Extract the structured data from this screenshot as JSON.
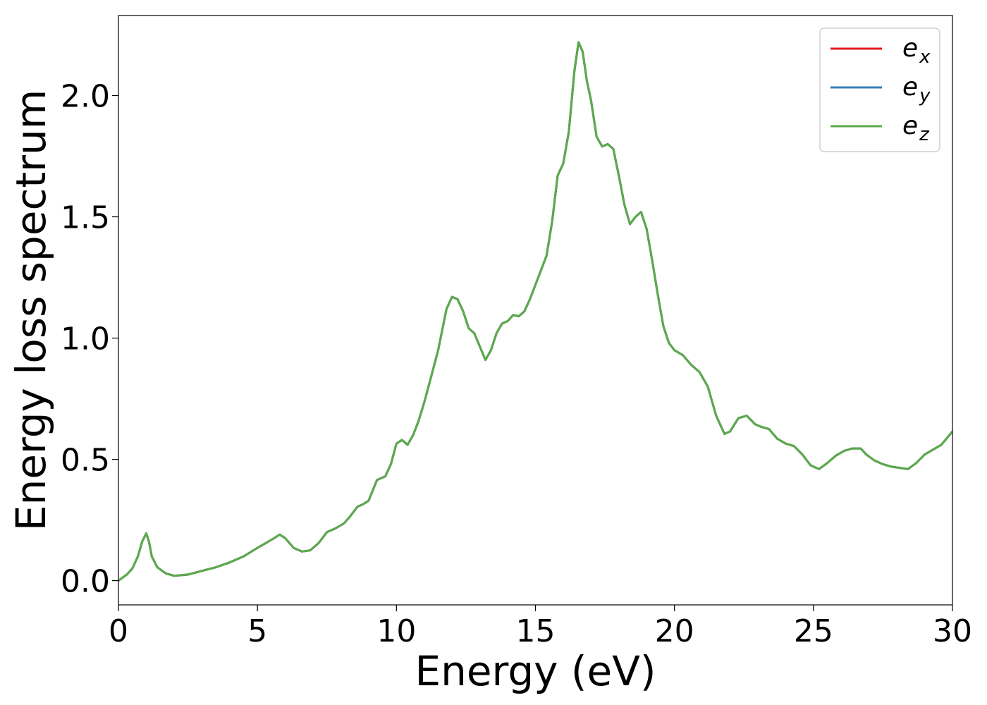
{
  "chart_data": {
    "type": "line",
    "title": "",
    "xlabel": "Energy (eV)",
    "ylabel": "Energy loss spectrum",
    "xlim": [
      0,
      30
    ],
    "ylim": [
      -0.1,
      2.33
    ],
    "xticks": [
      0,
      5,
      10,
      15,
      20,
      25,
      30
    ],
    "yticks": [
      0.0,
      0.5,
      1.0,
      1.5,
      2.0
    ],
    "xtick_labels": [
      "0",
      "5",
      "10",
      "15",
      "20",
      "25",
      "30"
    ],
    "ytick_labels": [
      "0.0",
      "0.5",
      "1.0",
      "1.5",
      "2.0"
    ],
    "grid": false,
    "legend_position": "top-right",
    "x": [
      0,
      0.3,
      0.5,
      0.7,
      0.85,
      1.0,
      1.1,
      1.2,
      1.4,
      1.7,
      2.0,
      2.5,
      3.0,
      3.5,
      4.0,
      4.5,
      5.0,
      5.3,
      5.6,
      5.8,
      6.0,
      6.3,
      6.6,
      6.9,
      7.2,
      7.5,
      7.8,
      8.1,
      8.3,
      8.6,
      8.8,
      9.0,
      9.3,
      9.6,
      9.8,
      10.0,
      10.2,
      10.4,
      10.6,
      10.8,
      11.0,
      11.2,
      11.5,
      11.8,
      12.0,
      12.2,
      12.4,
      12.6,
      12.8,
      13.0,
      13.2,
      13.4,
      13.6,
      13.8,
      14.0,
      14.2,
      14.4,
      14.6,
      14.8,
      15.0,
      15.2,
      15.4,
      15.6,
      15.8,
      16.0,
      16.2,
      16.4,
      16.55,
      16.7,
      16.85,
      17.0,
      17.2,
      17.4,
      17.6,
      17.8,
      18.0,
      18.2,
      18.4,
      18.6,
      18.8,
      19.0,
      19.2,
      19.4,
      19.6,
      19.8,
      20.0,
      20.3,
      20.6,
      20.9,
      21.2,
      21.5,
      21.8,
      22.0,
      22.3,
      22.6,
      22.9,
      23.1,
      23.4,
      23.7,
      24.0,
      24.3,
      24.6,
      24.9,
      25.2,
      25.5,
      25.8,
      26.1,
      26.4,
      26.7,
      26.9,
      27.2,
      27.5,
      27.8,
      28.1,
      28.4,
      28.7,
      29.0,
      29.3,
      29.6,
      30.0
    ],
    "series": [
      {
        "name": "e_x",
        "label_main": "e",
        "label_sub": "x",
        "color": "#e41a1c",
        "values": [
          0.0,
          0.025,
          0.05,
          0.1,
          0.16,
          0.195,
          0.16,
          0.1,
          0.055,
          0.03,
          0.02,
          0.025,
          0.04,
          0.055,
          0.075,
          0.1,
          0.135,
          0.155,
          0.175,
          0.19,
          0.175,
          0.135,
          0.12,
          0.125,
          0.155,
          0.2,
          0.215,
          0.235,
          0.26,
          0.305,
          0.315,
          0.33,
          0.415,
          0.43,
          0.48,
          0.565,
          0.58,
          0.56,
          0.6,
          0.66,
          0.735,
          0.82,
          0.95,
          1.12,
          1.17,
          1.16,
          1.11,
          1.04,
          1.02,
          0.965,
          0.91,
          0.95,
          1.02,
          1.06,
          1.07,
          1.095,
          1.09,
          1.11,
          1.16,
          1.22,
          1.28,
          1.34,
          1.48,
          1.67,
          1.72,
          1.85,
          2.1,
          2.22,
          2.18,
          2.06,
          1.98,
          1.83,
          1.79,
          1.8,
          1.78,
          1.67,
          1.55,
          1.47,
          1.5,
          1.52,
          1.45,
          1.32,
          1.18,
          1.05,
          0.98,
          0.95,
          0.93,
          0.89,
          0.86,
          0.8,
          0.68,
          0.605,
          0.615,
          0.67,
          0.68,
          0.645,
          0.635,
          0.625,
          0.585,
          0.565,
          0.555,
          0.52,
          0.475,
          0.46,
          0.485,
          0.515,
          0.535,
          0.545,
          0.545,
          0.52,
          0.495,
          0.48,
          0.47,
          0.465,
          0.46,
          0.485,
          0.52,
          0.54,
          0.56,
          0.615
        ]
      },
      {
        "name": "e_y",
        "label_main": "e",
        "label_sub": "y",
        "color": "#377eb8",
        "values": [
          0.0,
          0.025,
          0.05,
          0.1,
          0.16,
          0.195,
          0.16,
          0.1,
          0.055,
          0.03,
          0.02,
          0.025,
          0.04,
          0.055,
          0.075,
          0.1,
          0.135,
          0.155,
          0.175,
          0.19,
          0.175,
          0.135,
          0.12,
          0.125,
          0.155,
          0.2,
          0.215,
          0.235,
          0.26,
          0.305,
          0.315,
          0.33,
          0.415,
          0.43,
          0.48,
          0.565,
          0.58,
          0.56,
          0.6,
          0.66,
          0.735,
          0.82,
          0.95,
          1.12,
          1.17,
          1.16,
          1.11,
          1.04,
          1.02,
          0.965,
          0.91,
          0.95,
          1.02,
          1.06,
          1.07,
          1.095,
          1.09,
          1.11,
          1.16,
          1.22,
          1.28,
          1.34,
          1.48,
          1.67,
          1.72,
          1.85,
          2.1,
          2.22,
          2.18,
          2.06,
          1.98,
          1.83,
          1.79,
          1.8,
          1.78,
          1.67,
          1.55,
          1.47,
          1.5,
          1.52,
          1.45,
          1.32,
          1.18,
          1.05,
          0.98,
          0.95,
          0.93,
          0.89,
          0.86,
          0.8,
          0.68,
          0.605,
          0.615,
          0.67,
          0.68,
          0.645,
          0.635,
          0.625,
          0.585,
          0.565,
          0.555,
          0.52,
          0.475,
          0.46,
          0.485,
          0.515,
          0.535,
          0.545,
          0.545,
          0.52,
          0.495,
          0.48,
          0.47,
          0.465,
          0.46,
          0.485,
          0.52,
          0.54,
          0.56,
          0.615
        ]
      },
      {
        "name": "e_z",
        "label_main": "e",
        "label_sub": "z",
        "color": "#5aab4b",
        "values": [
          0.0,
          0.025,
          0.05,
          0.1,
          0.16,
          0.195,
          0.16,
          0.1,
          0.055,
          0.03,
          0.02,
          0.025,
          0.04,
          0.055,
          0.075,
          0.1,
          0.135,
          0.155,
          0.175,
          0.19,
          0.175,
          0.135,
          0.12,
          0.125,
          0.155,
          0.2,
          0.215,
          0.235,
          0.26,
          0.305,
          0.315,
          0.33,
          0.415,
          0.43,
          0.48,
          0.565,
          0.58,
          0.56,
          0.6,
          0.66,
          0.735,
          0.82,
          0.95,
          1.12,
          1.17,
          1.16,
          1.11,
          1.04,
          1.02,
          0.965,
          0.91,
          0.95,
          1.02,
          1.06,
          1.07,
          1.095,
          1.09,
          1.11,
          1.16,
          1.22,
          1.28,
          1.34,
          1.48,
          1.67,
          1.72,
          1.85,
          2.1,
          2.22,
          2.18,
          2.06,
          1.98,
          1.83,
          1.79,
          1.8,
          1.78,
          1.67,
          1.55,
          1.47,
          1.5,
          1.52,
          1.45,
          1.32,
          1.18,
          1.05,
          0.98,
          0.95,
          0.93,
          0.89,
          0.86,
          0.8,
          0.68,
          0.605,
          0.615,
          0.67,
          0.68,
          0.645,
          0.635,
          0.625,
          0.585,
          0.565,
          0.555,
          0.52,
          0.475,
          0.46,
          0.485,
          0.515,
          0.535,
          0.545,
          0.545,
          0.52,
          0.495,
          0.48,
          0.47,
          0.465,
          0.46,
          0.485,
          0.52,
          0.54,
          0.56,
          0.615
        ]
      }
    ]
  }
}
